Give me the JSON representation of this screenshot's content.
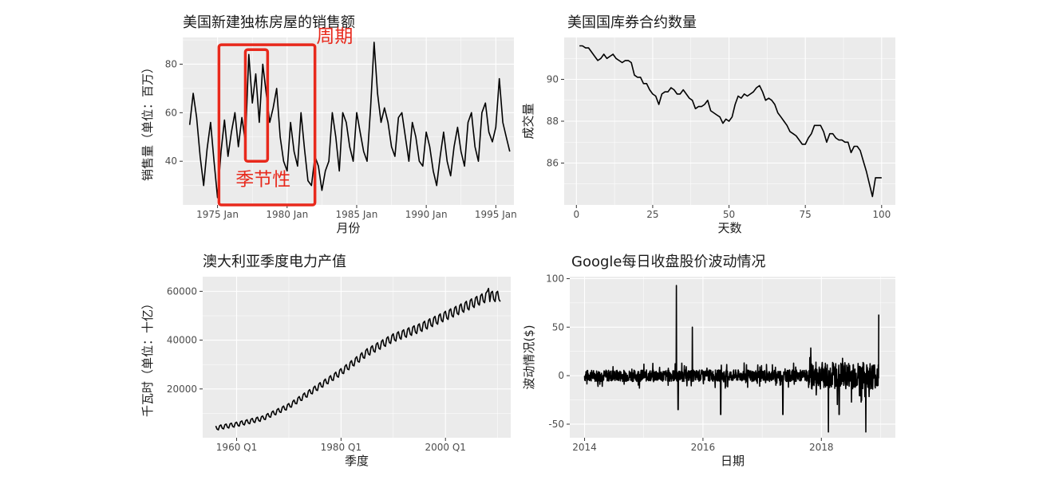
{
  "chart_data": [
    {
      "id": "p1",
      "type": "line",
      "title": "美国新建独栋房屋的销售额",
      "xlabel": "月份",
      "ylabel": "销售量（单位：百万）",
      "xlim": [
        1972.5,
        1996.3
      ],
      "ylim": [
        22,
        91
      ],
      "x_ticks": [
        {
          "v": 1975,
          "label": "1975 Jan"
        },
        {
          "v": 1980,
          "label": "1980 Jan"
        },
        {
          "v": 1985,
          "label": "1985 Jan"
        },
        {
          "v": 1990,
          "label": "1990 Jan"
        },
        {
          "v": 1995,
          "label": "1995 Jan"
        }
      ],
      "y_ticks": [
        {
          "v": 40,
          "label": "40"
        },
        {
          "v": 60,
          "label": "60"
        },
        {
          "v": 80,
          "label": "80"
        }
      ],
      "x": [
        1973.0,
        1973.25,
        1973.5,
        1973.75,
        1974.0,
        1974.25,
        1974.5,
        1974.75,
        1975.0,
        1975.25,
        1975.5,
        1975.75,
        1976.0,
        1976.25,
        1976.5,
        1976.75,
        1977.0,
        1977.25,
        1977.5,
        1977.75,
        1978.0,
        1978.25,
        1978.5,
        1978.75,
        1979.0,
        1979.25,
        1979.5,
        1979.75,
        1980.0,
        1980.25,
        1980.5,
        1980.75,
        1981.0,
        1981.25,
        1981.5,
        1981.75,
        1982.0,
        1982.25,
        1982.5,
        1982.75,
        1983.0,
        1983.25,
        1983.5,
        1983.75,
        1984.0,
        1984.25,
        1984.5,
        1984.75,
        1985.0,
        1985.25,
        1985.5,
        1985.75,
        1986.0,
        1986.25,
        1986.5,
        1986.75,
        1987.0,
        1987.25,
        1987.5,
        1987.75,
        1988.0,
        1988.25,
        1988.5,
        1988.75,
        1989.0,
        1989.25,
        1989.5,
        1989.75,
        1990.0,
        1990.25,
        1990.5,
        1990.75,
        1991.0,
        1991.25,
        1991.5,
        1991.75,
        1992.0,
        1992.25,
        1992.5,
        1992.75,
        1993.0,
        1993.25,
        1993.5,
        1993.75,
        1994.0,
        1994.25,
        1994.5,
        1994.75,
        1995.0,
        1995.25,
        1995.5,
        1995.75,
        1996.0
      ],
      "values": [
        55,
        68,
        58,
        42,
        30,
        45,
        56,
        40,
        25,
        44,
        57,
        42,
        52,
        60,
        46,
        58,
        48,
        84,
        64,
        76,
        56,
        80,
        68,
        56,
        62,
        70,
        50,
        40,
        36,
        56,
        44,
        38,
        60,
        45,
        32,
        30,
        42,
        38,
        28,
        36,
        40,
        60,
        50,
        36,
        60,
        56,
        46,
        40,
        60,
        52,
        44,
        40,
        62,
        89,
        68,
        56,
        62,
        56,
        46,
        42,
        58,
        60,
        50,
        40,
        56,
        50,
        40,
        38,
        52,
        46,
        36,
        30,
        42,
        52,
        40,
        34,
        46,
        54,
        44,
        38,
        56,
        60,
        46,
        40,
        60,
        64,
        52,
        48,
        54,
        74,
        56,
        50,
        44
      ],
      "annotations": {
        "season_label": "季节性",
        "cycle_label": "周期"
      }
    },
    {
      "id": "p2",
      "type": "line",
      "title": "美国国库券合约数量",
      "xlabel": "天数",
      "ylabel": "成交量",
      "xlim": [
        -4,
        104.5
      ],
      "ylim": [
        84.0,
        92.0
      ],
      "x_ticks": [
        {
          "v": 0,
          "label": "0"
        },
        {
          "v": 25,
          "label": "25"
        },
        {
          "v": 50,
          "label": "50"
        },
        {
          "v": 75,
          "label": "75"
        },
        {
          "v": 100,
          "label": "100"
        }
      ],
      "y_ticks": [
        {
          "v": 86,
          "label": "86"
        },
        {
          "v": 88,
          "label": "88"
        },
        {
          "v": 90,
          "label": "90"
        }
      ],
      "x": [
        1,
        2,
        3,
        4,
        5,
        6,
        7,
        8,
        9,
        10,
        11,
        12,
        13,
        14,
        15,
        16,
        17,
        18,
        19,
        20,
        21,
        22,
        23,
        24,
        25,
        26,
        27,
        28,
        29,
        30,
        31,
        32,
        33,
        34,
        35,
        36,
        37,
        38,
        39,
        40,
        41,
        42,
        43,
        44,
        45,
        46,
        47,
        48,
        49,
        50,
        51,
        52,
        53,
        54,
        55,
        56,
        57,
        58,
        59,
        60,
        61,
        62,
        63,
        64,
        65,
        66,
        67,
        68,
        69,
        70,
        71,
        72,
        73,
        74,
        75,
        76,
        77,
        78,
        79,
        80,
        81,
        82,
        83,
        84,
        85,
        86,
        87,
        88,
        89,
        90,
        91,
        92,
        93,
        94,
        95,
        96,
        97,
        98,
        99,
        100
      ],
      "values": [
        91.6,
        91.6,
        91.5,
        91.5,
        91.3,
        91.1,
        90.9,
        91.0,
        91.2,
        91.0,
        91.1,
        91.2,
        91.0,
        90.9,
        90.8,
        90.9,
        90.9,
        90.8,
        90.2,
        90.1,
        90.1,
        89.8,
        89.8,
        89.5,
        89.3,
        89.2,
        88.8,
        89.3,
        89.4,
        89.4,
        89.6,
        89.5,
        89.3,
        89.3,
        89.5,
        89.3,
        89.1,
        89.0,
        88.6,
        88.7,
        88.7,
        88.8,
        89.0,
        88.5,
        88.4,
        88.3,
        88.2,
        87.9,
        88.1,
        88.0,
        88.2,
        88.8,
        89.2,
        89.1,
        89.3,
        89.2,
        89.3,
        89.4,
        89.6,
        89.7,
        89.4,
        89.0,
        89.1,
        89.0,
        88.8,
        88.4,
        88.2,
        88.0,
        87.8,
        87.5,
        87.4,
        87.3,
        87.1,
        86.9,
        86.9,
        87.2,
        87.4,
        87.8,
        87.8,
        87.8,
        87.5,
        87.0,
        87.4,
        87.4,
        87.2,
        87.1,
        87.1,
        87.0,
        87.0,
        86.5,
        86.8,
        86.8,
        86.6,
        86.1,
        85.6,
        85.0,
        84.4,
        85.3,
        85.3,
        85.3
      ]
    },
    {
      "id": "p3",
      "type": "line",
      "title": "澳大利亚季度电力产值",
      "xlabel": "季度",
      "ylabel": "千瓦时（单位：十亿）",
      "xlim": [
        1953.5,
        2012.5
      ],
      "ylim": [
        0,
        66000
      ],
      "x_ticks": [
        {
          "v": 1960,
          "label": "1960 Q1"
        },
        {
          "v": 1980,
          "label": "1980 Q1"
        },
        {
          "v": 2000,
          "label": "2000 Q1"
        }
      ],
      "y_ticks": [
        {
          "v": 20000,
          "label": "20000"
        },
        {
          "v": 40000,
          "label": "40000"
        },
        {
          "v": 60000,
          "label": "60000"
        }
      ],
      "x_start": 1956.0,
      "x_end": 2010.5,
      "seasonal_amplitude": 1400,
      "trend_points": [
        [
          1956,
          4000
        ],
        [
          1960,
          5500
        ],
        [
          1965,
          8000
        ],
        [
          1970,
          13000
        ],
        [
          1975,
          20000
        ],
        [
          1980,
          27000
        ],
        [
          1985,
          35000
        ],
        [
          1990,
          41000
        ],
        [
          1995,
          45000
        ],
        [
          2000,
          50000
        ],
        [
          2005,
          55000
        ],
        [
          2008,
          58000
        ],
        [
          2010.5,
          58000
        ]
      ]
    },
    {
      "id": "p4",
      "type": "line",
      "title": "Google每日收盘股价波动情况",
      "xlabel": "日期",
      "ylabel": "波动情况($)",
      "xlim": [
        2013.75,
        2019.25
      ],
      "ylim": [
        -64,
        102
      ],
      "x_ticks": [
        {
          "v": 2014,
          "label": "2014"
        },
        {
          "v": 2016,
          "label": "2016"
        },
        {
          "v": 2018,
          "label": "2018"
        }
      ],
      "y_ticks": [
        {
          "v": -50,
          "label": "-50"
        },
        {
          "v": 0,
          "label": "0"
        },
        {
          "v": 50,
          "label": "50"
        },
        {
          "v": 100,
          "label": "100"
        }
      ],
      "x_start": 2014.0,
      "x_end": 2018.97,
      "spikes": [
        [
          2015.55,
          93
        ],
        [
          2015.58,
          -35
        ],
        [
          2015.82,
          50
        ],
        [
          2016.3,
          -40
        ],
        [
          2017.35,
          -40
        ],
        [
          2018.12,
          -58
        ],
        [
          2018.3,
          -40
        ],
        [
          2018.75,
          -58
        ],
        [
          2018.97,
          63
        ]
      ]
    }
  ]
}
